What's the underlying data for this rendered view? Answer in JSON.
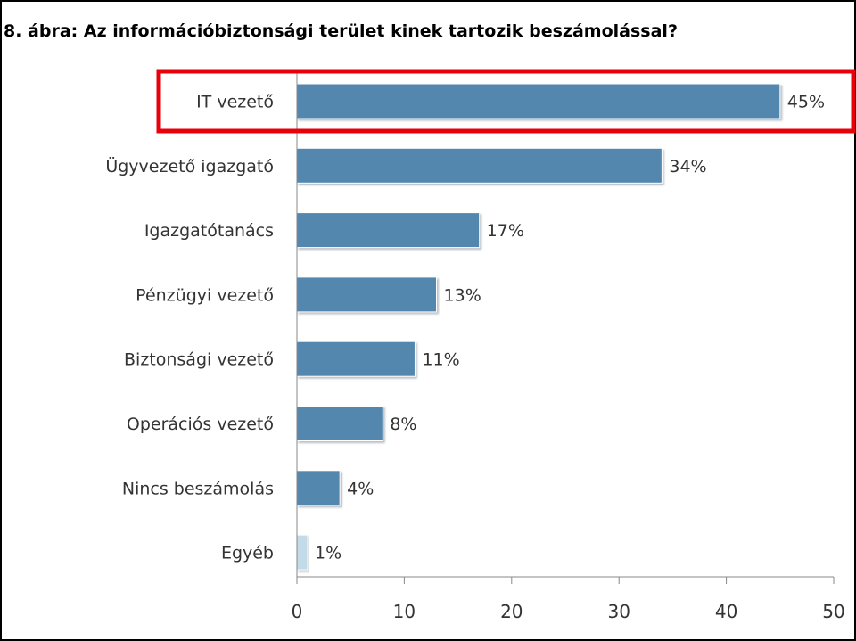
{
  "chart_data": {
    "type": "bar",
    "orientation": "horizontal",
    "title": "8. ábra:  Az információbiztonsági terület kinek tartozik beszámolással?",
    "categories": [
      "IT vezető",
      "Ügyvezető igazgató",
      "Igazgatótanács",
      "Pénzügyi vezető",
      "Biztonsági vezető",
      "Operációs vezető",
      "Nincs beszámolás",
      "Egyéb"
    ],
    "values": [
      45,
      34,
      17,
      13,
      11,
      8,
      4,
      1
    ],
    "value_labels": [
      "45%",
      "34%",
      "17%",
      "13%",
      "11%",
      "8%",
      "4%",
      "1%"
    ],
    "xlim": [
      0,
      50
    ],
    "xticks": [
      0,
      10,
      20,
      30,
      40,
      50
    ],
    "xlabel": "",
    "ylabel": "",
    "grid": false,
    "highlighted_category": "IT vezető",
    "colors": {
      "bar": "#5287ad",
      "bar_light": "#c3dbe9",
      "highlight": "#e8000b",
      "axis": "#888888",
      "text": "#333333"
    }
  }
}
